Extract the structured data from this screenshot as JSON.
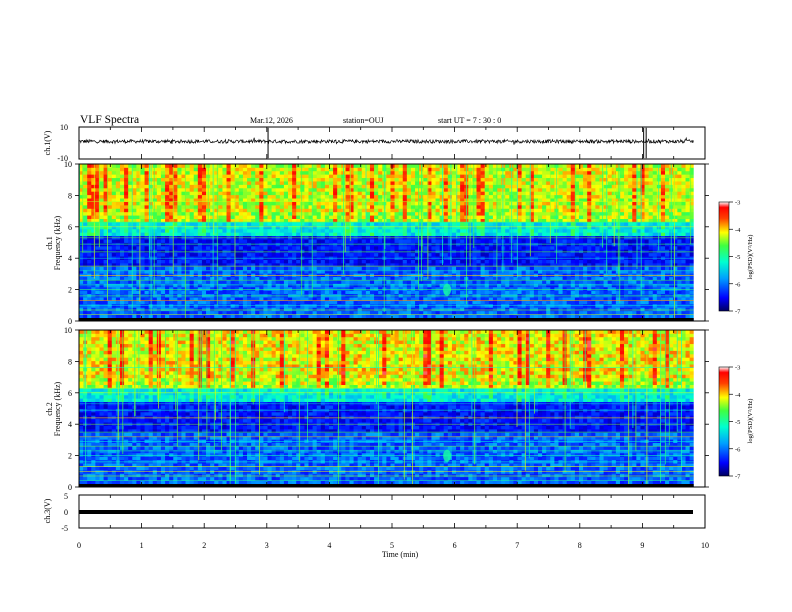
{
  "header": {
    "title": "VLF Spectra",
    "date": "Mar.12, 2026",
    "station": "station=OUJ",
    "start": "start  UT  =   7 : 30 : 0"
  },
  "chart_data": [
    {
      "type": "line",
      "name": "ch1-waveform",
      "ylabel": "ch.1(V)",
      "ylim": [
        -10,
        10
      ],
      "ytick_labels": [
        "10",
        "-10"
      ],
      "baseline_v": 1.0,
      "spike_times_min": [
        3.02,
        9.02,
        9.06
      ]
    },
    {
      "type": "heatmap",
      "name": "ch1-spectrogram",
      "ylabel": "ch.1 Frequency (kHz)",
      "ylim": [
        0,
        10
      ],
      "ytick_labels": [
        "0",
        "2",
        "4",
        "6",
        "8",
        "10"
      ],
      "colorbar": {
        "label": "log(PSD)(V²/Hz)",
        "range": [
          -7,
          -3
        ],
        "tick_labels": [
          "-3",
          "-4",
          "-5",
          "-6",
          "-7"
        ]
      }
    },
    {
      "type": "heatmap",
      "name": "ch2-spectrogram",
      "ylabel": "ch.2 Frequency (kHz)",
      "ylim": [
        0,
        10
      ],
      "ytick_labels": [
        "0",
        "2",
        "4",
        "6",
        "8",
        "10"
      ],
      "colorbar": {
        "label": "log(PSD)(V²/Hz)",
        "range": [
          -7,
          -3
        ],
        "tick_labels": [
          "-3",
          "-4",
          "-5",
          "-6",
          "-7"
        ]
      }
    },
    {
      "type": "line",
      "name": "ch3-waveform",
      "ylabel": "ch.3(V)",
      "ylim": [
        -5,
        5
      ],
      "ytick_labels": [
        "5",
        "0",
        "-5"
      ],
      "baseline_v": -0.3
    }
  ],
  "xaxis": {
    "label": "Time  (min)",
    "range": [
      0,
      10
    ],
    "tick_labels": [
      "0",
      "1",
      "2",
      "3",
      "4",
      "5",
      "6",
      "7",
      "8",
      "9",
      "10"
    ],
    "data_end_min": 9.82
  },
  "colors": {
    "background": "#ffffff",
    "axis": "#000000"
  }
}
